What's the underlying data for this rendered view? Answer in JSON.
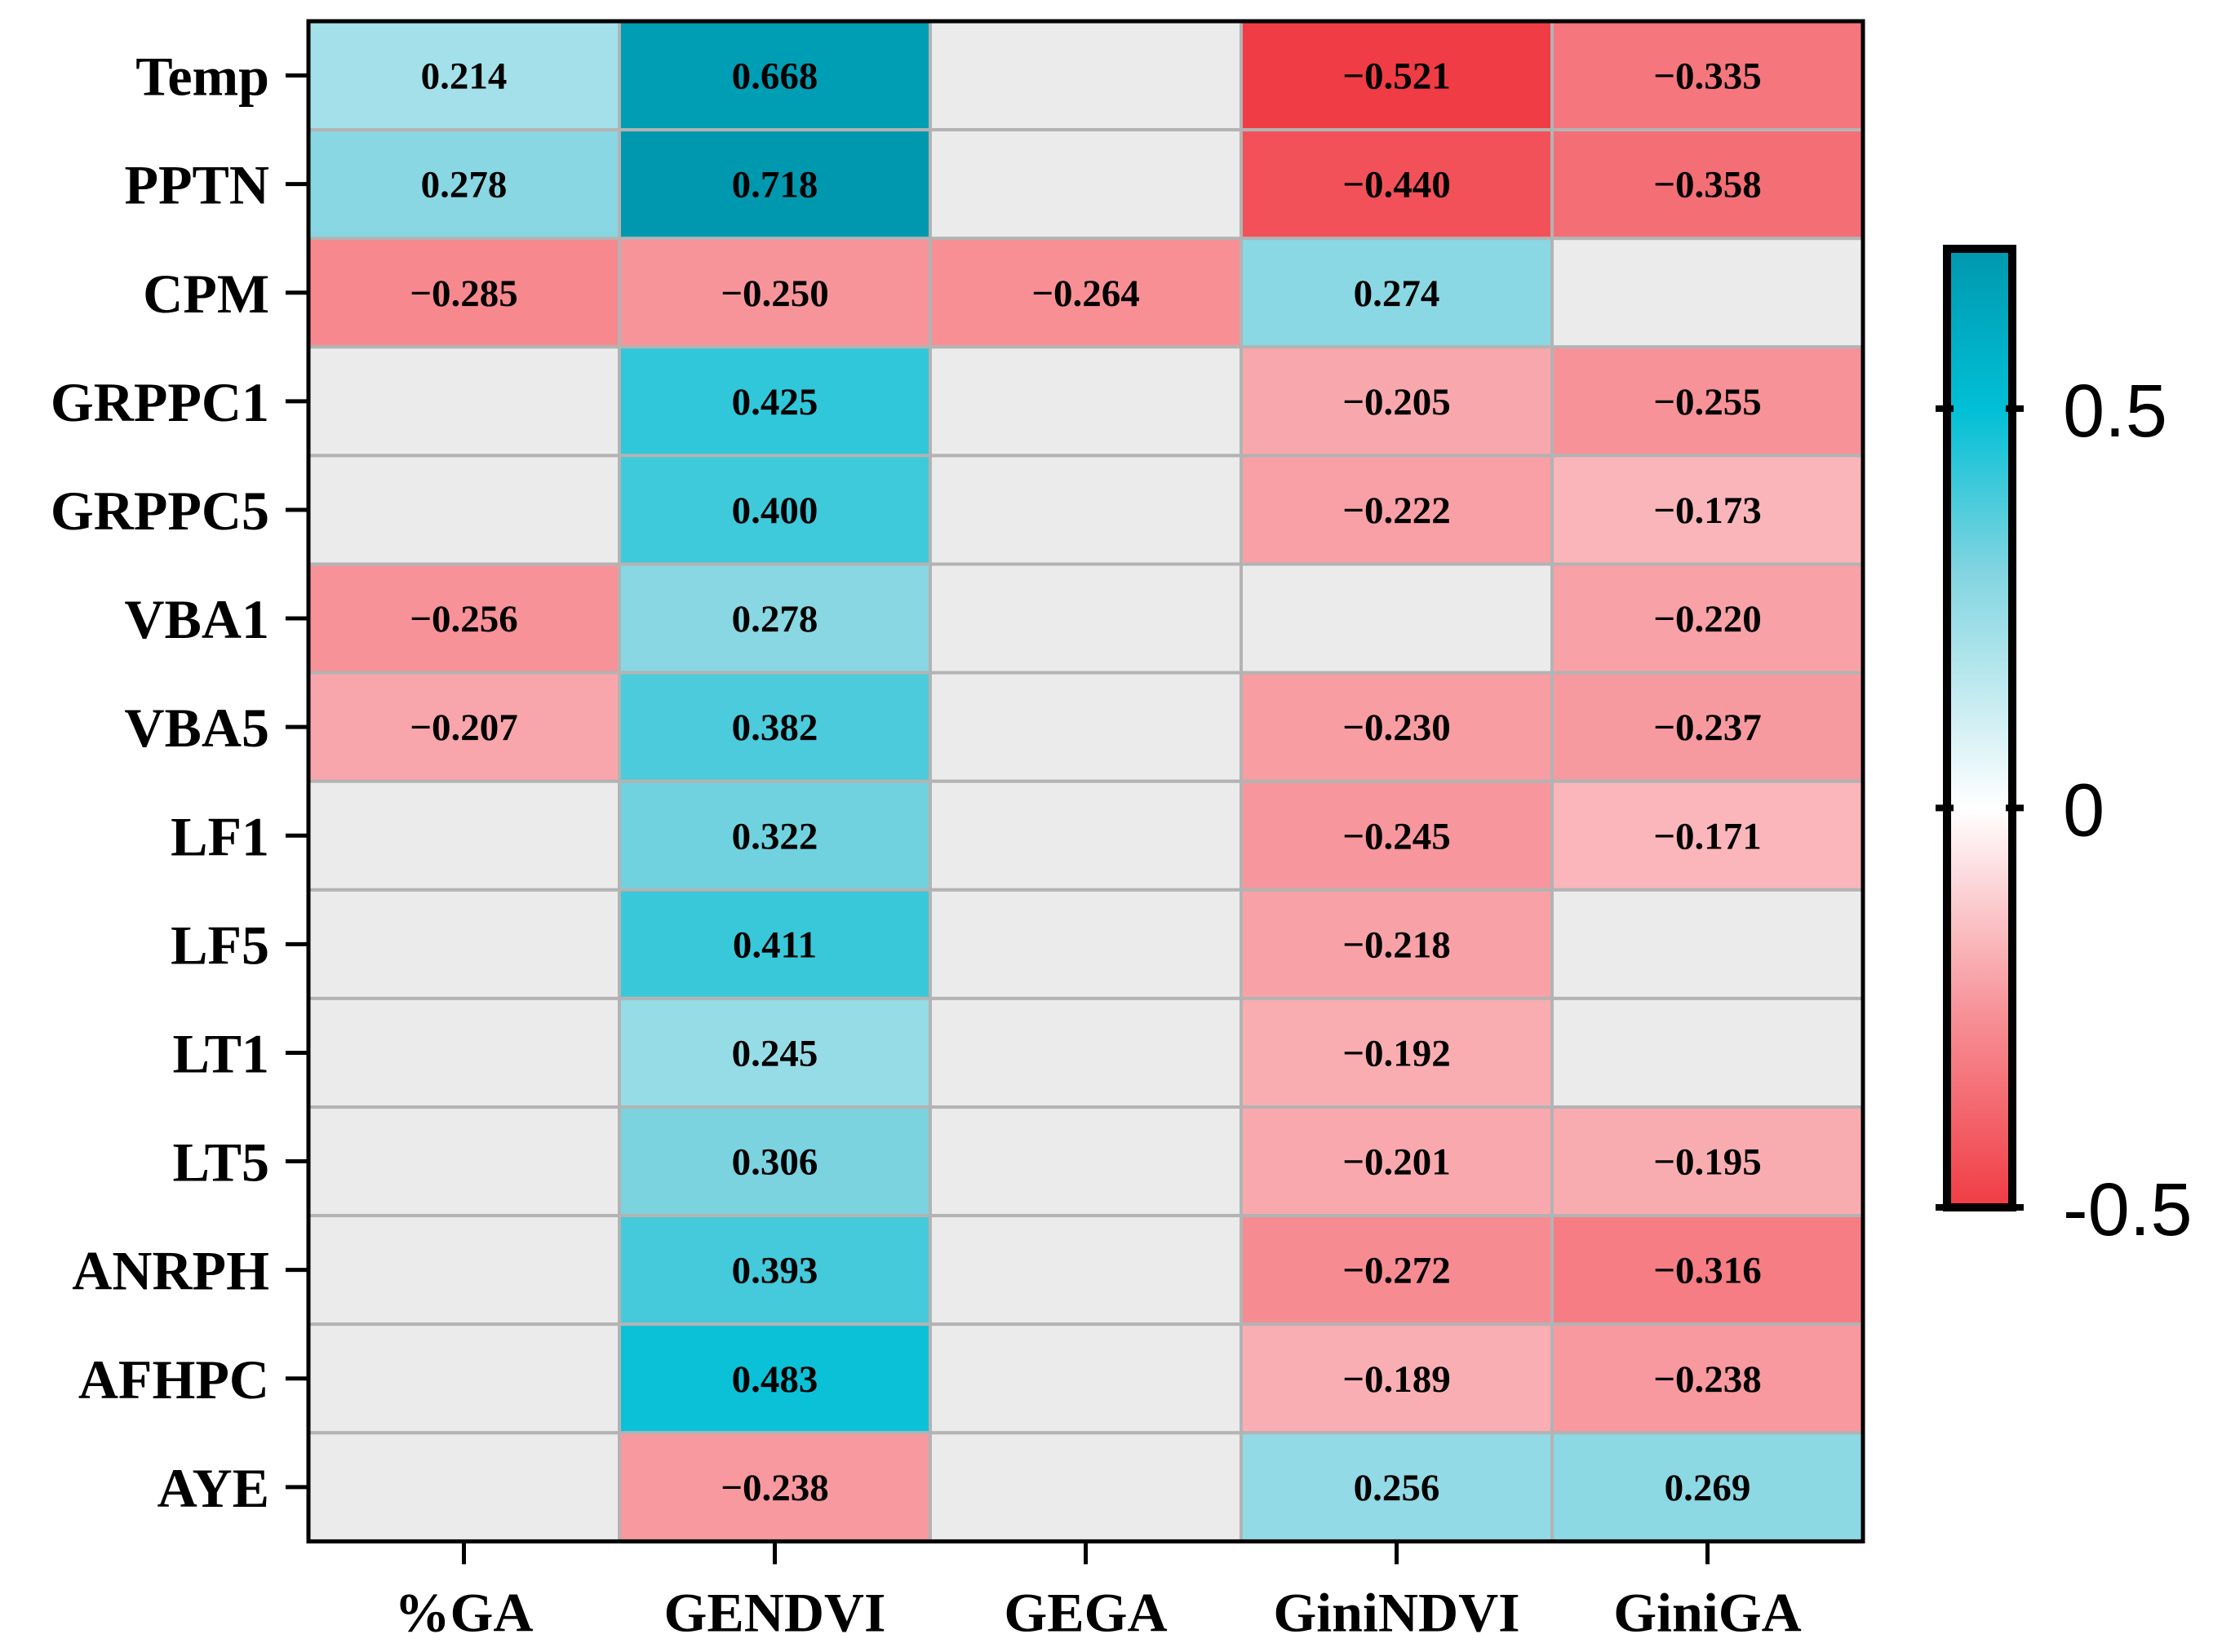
{
  "chart_data": {
    "type": "heatmap",
    "title": "",
    "xlabel": "",
    "ylabel": "",
    "columns": [
      "%GA",
      "GENDVI",
      "GEGA",
      "GiniNDVI",
      "GiniGA"
    ],
    "rows": [
      "Temp",
      "PPTN",
      "CPM",
      "GRPPC1",
      "GRPPC5",
      "VBA1",
      "VBA5",
      "LF1",
      "LF5",
      "LT1",
      "LT5",
      "ANRPH",
      "AFHPC",
      "AYE"
    ],
    "values": [
      [
        0.214,
        0.668,
        null,
        -0.521,
        -0.335
      ],
      [
        0.278,
        0.718,
        null,
        -0.44,
        -0.358
      ],
      [
        -0.285,
        -0.25,
        -0.264,
        0.274,
        null
      ],
      [
        null,
        0.425,
        null,
        -0.205,
        -0.255
      ],
      [
        null,
        0.4,
        null,
        -0.222,
        -0.173
      ],
      [
        -0.256,
        0.278,
        null,
        null,
        -0.22
      ],
      [
        -0.207,
        0.382,
        null,
        -0.23,
        -0.237
      ],
      [
        null,
        0.322,
        null,
        -0.245,
        -0.171
      ],
      [
        null,
        0.411,
        null,
        -0.218,
        null
      ],
      [
        null,
        0.245,
        null,
        -0.192,
        null
      ],
      [
        null,
        0.306,
        null,
        -0.201,
        -0.195
      ],
      [
        null,
        0.393,
        null,
        -0.272,
        -0.316
      ],
      [
        null,
        0.483,
        null,
        -0.189,
        -0.238
      ],
      [
        null,
        -0.238,
        null,
        0.256,
        0.269
      ]
    ],
    "value_labels": [
      [
        "0.214",
        "0.668",
        "",
        "−0.521",
        "−0.335"
      ],
      [
        "0.278",
        "0.718",
        "",
        "−0.440",
        "−0.358"
      ],
      [
        "−0.285",
        "−0.250",
        "−0.264",
        "0.274",
        ""
      ],
      [
        "",
        "0.425",
        "",
        "−0.205",
        "−0.255"
      ],
      [
        "",
        "0.400",
        "",
        "−0.222",
        "−0.173"
      ],
      [
        "−0.256",
        "0.278",
        "",
        "",
        "−0.220"
      ],
      [
        "−0.207",
        "0.382",
        "",
        "−0.230",
        "−0.237"
      ],
      [
        "",
        "0.322",
        "",
        "−0.245",
        "−0.171"
      ],
      [
        "",
        "0.411",
        "",
        "−0.218",
        ""
      ],
      [
        "",
        "0.245",
        "",
        "−0.192",
        ""
      ],
      [
        "",
        "0.306",
        "",
        "−0.201",
        "−0.195"
      ],
      [
        "",
        "0.393",
        "",
        "−0.272",
        "−0.316"
      ],
      [
        "",
        "0.483",
        "",
        "−0.189",
        "−0.238"
      ],
      [
        "",
        "−0.238",
        "",
        "0.256",
        "0.269"
      ]
    ],
    "colorbar": {
      "range": [
        -0.5,
        0.7
      ],
      "ticks": [
        0.5,
        0,
        -0.5
      ],
      "tick_labels": [
        "0.5",
        "0",
        "-0.5"
      ],
      "stops": [
        {
          "value": -0.5,
          "color": "#F03C44"
        },
        {
          "value": -0.25,
          "color": "#F7949A"
        },
        {
          "value": 0.0,
          "color": "#FFFFFF"
        },
        {
          "value": 0.3,
          "color": "#7FD4E0"
        },
        {
          "value": 0.5,
          "color": "#00BFD6"
        },
        {
          "value": 0.7,
          "color": "#0098AE"
        }
      ]
    },
    "empty_cell_color": "#EBEBEB",
    "grid_color": "#B3B3B3"
  }
}
